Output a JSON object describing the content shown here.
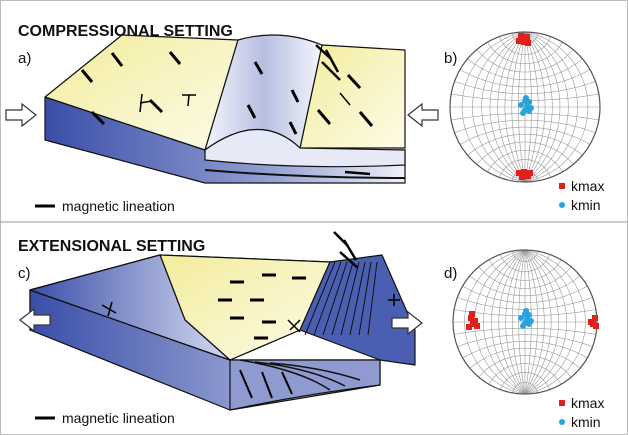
{
  "panels": [
    {
      "title": "COMPRESSIONAL SETTING",
      "diagram_label": "a)",
      "stereonet_label": "b)",
      "legend": "magnetic lineation",
      "stereonet_legend": [
        "kmax",
        "kmin"
      ]
    },
    {
      "title": "EXTENSIONAL SETTING",
      "diagram_label": "c)",
      "stereonet_label": "d)",
      "legend": "magnetic lineation",
      "stereonet_legend": [
        "kmax",
        "kmin"
      ]
    }
  ]
}
